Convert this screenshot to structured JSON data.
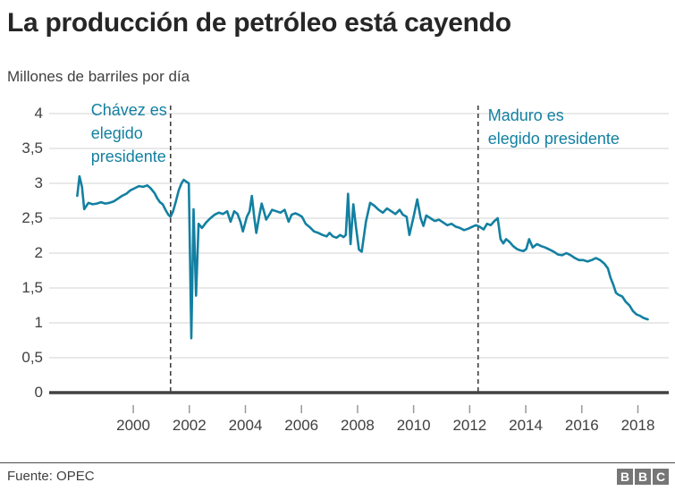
{
  "header": {
    "title": "La producción de petróleo está cayendo",
    "subtitle": "Millones de barriles por día"
  },
  "footer": {
    "source": "Fuente: OPEC",
    "logo_letters": [
      "B",
      "B",
      "C"
    ]
  },
  "colors": {
    "line": "#1380A1",
    "annotation_text": "#1380A1",
    "grid": "#e2e2e2",
    "axis": "#424242",
    "tick": "#999999",
    "dashed_line": "#3f3f3f",
    "bbc_gray": "#767676"
  },
  "chart_data": {
    "type": "line",
    "title": "La producción de petróleo está cayendo",
    "subtitle_unit": "Millones de barriles por día",
    "x_range": [
      1997.0,
      2019.1
    ],
    "y_range": [
      0,
      4
    ],
    "grid": "horizontal",
    "legend": "none",
    "xticks": [
      {
        "v": 2000,
        "label": "2000"
      },
      {
        "v": 2002,
        "label": "2002"
      },
      {
        "v": 2004,
        "label": "2004"
      },
      {
        "v": 2006,
        "label": "2006"
      },
      {
        "v": 2008,
        "label": "2008"
      },
      {
        "v": 2010,
        "label": "2010"
      },
      {
        "v": 2012,
        "label": "2012"
      },
      {
        "v": 2014,
        "label": "2014"
      },
      {
        "v": 2016,
        "label": "2016"
      },
      {
        "v": 2018,
        "label": "2018"
      }
    ],
    "yticks": [
      {
        "v": 0,
        "label": "0"
      },
      {
        "v": 0.5,
        "label": "0,5"
      },
      {
        "v": 1,
        "label": "1"
      },
      {
        "v": 1.5,
        "label": "1,5"
      },
      {
        "v": 2,
        "label": "2"
      },
      {
        "v": 2.5,
        "label": "2,5"
      },
      {
        "v": 3,
        "label": "3"
      },
      {
        "v": 3.5,
        "label": "3,5"
      },
      {
        "v": 4,
        "label": "4"
      }
    ],
    "events": [
      {
        "year": 2001.33,
        "lines": [
          "Chávez es",
          "elegido",
          "presidente"
        ],
        "side": "left"
      },
      {
        "year": 2012.3,
        "lines": [
          "Maduro es",
          "elegido presidente"
        ],
        "side": "right"
      }
    ],
    "series": [
      {
        "points": [
          [
            1998.0,
            2.82
          ],
          [
            1998.08,
            3.1
          ],
          [
            1998.17,
            2.95
          ],
          [
            1998.25,
            2.63
          ],
          [
            1998.4,
            2.72
          ],
          [
            1998.55,
            2.7
          ],
          [
            1998.7,
            2.71
          ],
          [
            1998.85,
            2.73
          ],
          [
            1999.0,
            2.71
          ],
          [
            1999.15,
            2.72
          ],
          [
            1999.3,
            2.74
          ],
          [
            1999.45,
            2.78
          ],
          [
            1999.6,
            2.82
          ],
          [
            1999.75,
            2.85
          ],
          [
            1999.9,
            2.9
          ],
          [
            2000.05,
            2.93
          ],
          [
            2000.2,
            2.96
          ],
          [
            2000.35,
            2.95
          ],
          [
            2000.5,
            2.97
          ],
          [
            2000.62,
            2.93
          ],
          [
            2000.76,
            2.86
          ],
          [
            2000.85,
            2.79
          ],
          [
            2000.95,
            2.73
          ],
          [
            2001.05,
            2.7
          ],
          [
            2001.15,
            2.62
          ],
          [
            2001.25,
            2.55
          ],
          [
            2001.33,
            2.52
          ],
          [
            2001.42,
            2.6
          ],
          [
            2001.52,
            2.74
          ],
          [
            2001.62,
            2.9
          ],
          [
            2001.72,
            3.0
          ],
          [
            2001.8,
            3.05
          ],
          [
            2001.9,
            3.02
          ],
          [
            2001.98,
            3.0
          ],
          [
            2002.07,
            0.78
          ],
          [
            2002.15,
            2.63
          ],
          [
            2002.24,
            1.39
          ],
          [
            2002.33,
            2.42
          ],
          [
            2002.45,
            2.36
          ],
          [
            2002.6,
            2.44
          ],
          [
            2002.75,
            2.5
          ],
          [
            2002.9,
            2.55
          ],
          [
            2003.05,
            2.58
          ],
          [
            2003.2,
            2.56
          ],
          [
            2003.35,
            2.6
          ],
          [
            2003.47,
            2.45
          ],
          [
            2003.6,
            2.6
          ],
          [
            2003.72,
            2.56
          ],
          [
            2003.82,
            2.45
          ],
          [
            2003.91,
            2.31
          ],
          [
            2004.05,
            2.52
          ],
          [
            2004.15,
            2.6
          ],
          [
            2004.23,
            2.82
          ],
          [
            2004.32,
            2.5
          ],
          [
            2004.39,
            2.29
          ],
          [
            2004.5,
            2.55
          ],
          [
            2004.58,
            2.71
          ],
          [
            2004.66,
            2.6
          ],
          [
            2004.74,
            2.48
          ],
          [
            2004.85,
            2.55
          ],
          [
            2004.95,
            2.62
          ],
          [
            2005.1,
            2.6
          ],
          [
            2005.25,
            2.58
          ],
          [
            2005.4,
            2.62
          ],
          [
            2005.54,
            2.45
          ],
          [
            2005.65,
            2.55
          ],
          [
            2005.78,
            2.57
          ],
          [
            2005.9,
            2.55
          ],
          [
            2006.02,
            2.52
          ],
          [
            2006.15,
            2.42
          ],
          [
            2006.3,
            2.37
          ],
          [
            2006.45,
            2.31
          ],
          [
            2006.6,
            2.29
          ],
          [
            2006.75,
            2.26
          ],
          [
            2006.9,
            2.24
          ],
          [
            2007.0,
            2.29
          ],
          [
            2007.12,
            2.24
          ],
          [
            2007.25,
            2.22
          ],
          [
            2007.38,
            2.26
          ],
          [
            2007.5,
            2.23
          ],
          [
            2007.58,
            2.26
          ],
          [
            2007.66,
            2.85
          ],
          [
            2007.75,
            2.13
          ],
          [
            2007.85,
            2.7
          ],
          [
            2007.95,
            2.35
          ],
          [
            2008.05,
            2.05
          ],
          [
            2008.15,
            2.02
          ],
          [
            2008.3,
            2.45
          ],
          [
            2008.45,
            2.72
          ],
          [
            2008.6,
            2.68
          ],
          [
            2008.75,
            2.62
          ],
          [
            2008.9,
            2.58
          ],
          [
            2009.05,
            2.64
          ],
          [
            2009.2,
            2.6
          ],
          [
            2009.35,
            2.56
          ],
          [
            2009.5,
            2.62
          ],
          [
            2009.62,
            2.55
          ],
          [
            2009.75,
            2.52
          ],
          [
            2009.85,
            2.26
          ],
          [
            2010.0,
            2.52
          ],
          [
            2010.13,
            2.77
          ],
          [
            2010.25,
            2.5
          ],
          [
            2010.35,
            2.39
          ],
          [
            2010.45,
            2.54
          ],
          [
            2010.6,
            2.5
          ],
          [
            2010.75,
            2.46
          ],
          [
            2010.9,
            2.48
          ],
          [
            2011.05,
            2.44
          ],
          [
            2011.2,
            2.4
          ],
          [
            2011.35,
            2.42
          ],
          [
            2011.5,
            2.38
          ],
          [
            2011.65,
            2.36
          ],
          [
            2011.8,
            2.33
          ],
          [
            2011.95,
            2.35
          ],
          [
            2012.1,
            2.38
          ],
          [
            2012.22,
            2.4
          ],
          [
            2012.35,
            2.38
          ],
          [
            2012.5,
            2.34
          ],
          [
            2012.62,
            2.42
          ],
          [
            2012.75,
            2.4
          ],
          [
            2012.88,
            2.46
          ],
          [
            2013.0,
            2.5
          ],
          [
            2013.1,
            2.2
          ],
          [
            2013.2,
            2.14
          ],
          [
            2013.3,
            2.2
          ],
          [
            2013.42,
            2.16
          ],
          [
            2013.55,
            2.1
          ],
          [
            2013.68,
            2.06
          ],
          [
            2013.8,
            2.04
          ],
          [
            2013.92,
            2.03
          ],
          [
            2014.02,
            2.06
          ],
          [
            2014.12,
            2.2
          ],
          [
            2014.25,
            2.08
          ],
          [
            2014.4,
            2.13
          ],
          [
            2014.55,
            2.1
          ],
          [
            2014.7,
            2.08
          ],
          [
            2014.85,
            2.05
          ],
          [
            2015.0,
            2.02
          ],
          [
            2015.15,
            1.98
          ],
          [
            2015.3,
            1.97
          ],
          [
            2015.45,
            2.0
          ],
          [
            2015.6,
            1.97
          ],
          [
            2015.75,
            1.93
          ],
          [
            2015.9,
            1.9
          ],
          [
            2016.05,
            1.9
          ],
          [
            2016.2,
            1.88
          ],
          [
            2016.35,
            1.9
          ],
          [
            2016.5,
            1.93
          ],
          [
            2016.65,
            1.9
          ],
          [
            2016.8,
            1.85
          ],
          [
            2016.93,
            1.78
          ],
          [
            2017.02,
            1.65
          ],
          [
            2017.12,
            1.55
          ],
          [
            2017.22,
            1.43
          ],
          [
            2017.32,
            1.4
          ],
          [
            2017.44,
            1.38
          ],
          [
            2017.57,
            1.3
          ],
          [
            2017.7,
            1.25
          ],
          [
            2017.82,
            1.17
          ],
          [
            2017.95,
            1.12
          ],
          [
            2018.08,
            1.1
          ],
          [
            2018.2,
            1.07
          ],
          [
            2018.35,
            1.05
          ]
        ]
      }
    ]
  }
}
